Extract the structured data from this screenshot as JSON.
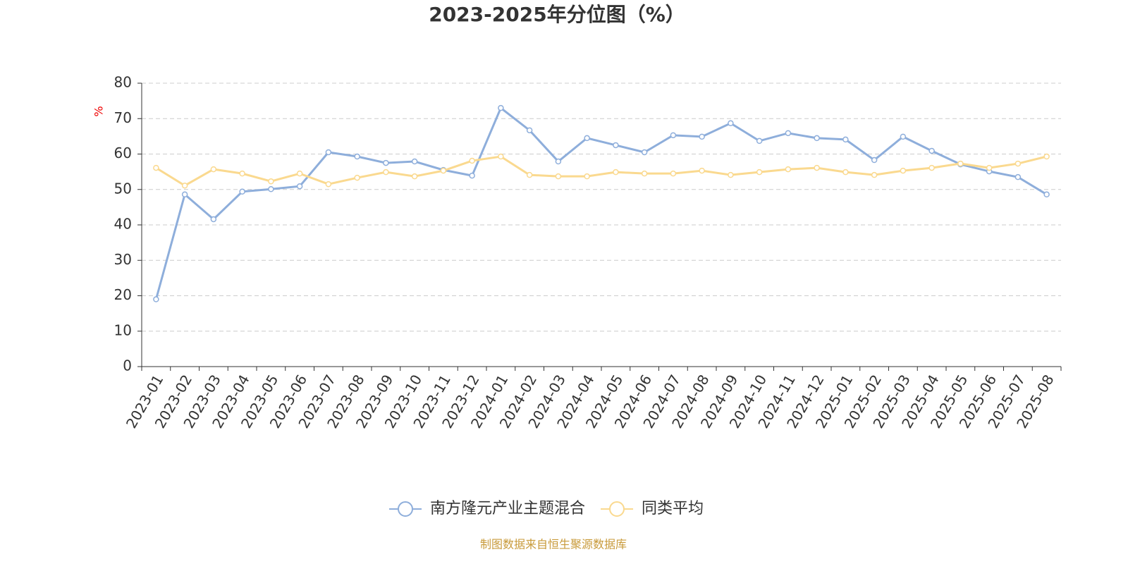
{
  "chart_data": {
    "type": "line",
    "title": "2023-2025年分位图（%）",
    "y_unit": "%",
    "categories": [
      "2023-01",
      "2023-02",
      "2023-03",
      "2023-04",
      "2023-05",
      "2023-06",
      "2023-07",
      "2023-08",
      "2023-09",
      "2023-10",
      "2023-11",
      "2023-12",
      "2024-01",
      "2024-02",
      "2024-03",
      "2024-04",
      "2024-05",
      "2024-06",
      "2024-07",
      "2024-08",
      "2024-09",
      "2024-10",
      "2024-11",
      "2024-12",
      "2025-01",
      "2025-02",
      "2025-03",
      "2025-04",
      "2025-05",
      "2025-06",
      "2025-07",
      "2025-08"
    ],
    "series": [
      {
        "name": "南方隆元产业主题混合",
        "color": "#8eaedb",
        "values": [
          19,
          48.6,
          41.6,
          49.4,
          50.1,
          50.9,
          60.5,
          59.3,
          57.5,
          57.9,
          55.5,
          53.9,
          73,
          66.7,
          57.9,
          64.5,
          62.5,
          60.5,
          65.3,
          64.9,
          68.7,
          63.7,
          65.9,
          64.5,
          64.1,
          58.3,
          64.9,
          60.9,
          57.1,
          55.1,
          53.5,
          48.6
        ]
      },
      {
        "name": "同类平均",
        "color": "#fad98f",
        "values": [
          56.1,
          51.1,
          55.7,
          54.5,
          52.3,
          54.5,
          51.5,
          53.3,
          54.9,
          53.7,
          55.3,
          58.1,
          59.3,
          54.1,
          53.7,
          53.7,
          54.9,
          54.5,
          54.5,
          55.3,
          54.1,
          54.9,
          55.7,
          56.1,
          54.9,
          54.1,
          55.3,
          56.1,
          57.3,
          56.1,
          57.3,
          59.3
        ]
      }
    ],
    "ylim": [
      0,
      80
    ],
    "yticks": [
      0,
      10,
      20,
      30,
      40,
      50,
      60,
      70,
      80
    ],
    "grid": true,
    "source": "制图数据来自恒生聚源数据库"
  }
}
